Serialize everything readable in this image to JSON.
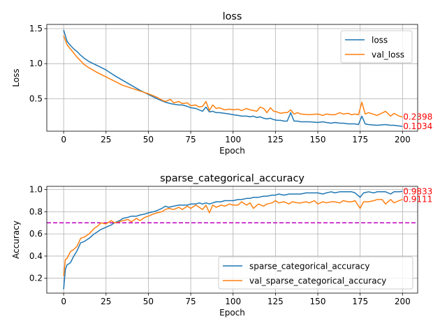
{
  "colors": {
    "series1": "#1f77b4",
    "series2": "#ff7f0e",
    "annotation": "#ff0000",
    "threshold": "#bf00bf",
    "grid": "#b0b0b0"
  },
  "chart_data": [
    {
      "type": "line",
      "title": "loss",
      "xlabel": "Epoch",
      "ylabel": "Loss",
      "xlim": [
        -9.95,
        208.95
      ],
      "ylim": [
        0.035,
        1.56
      ],
      "xticks": [
        0,
        25,
        50,
        75,
        100,
        125,
        150,
        175,
        200
      ],
      "yticks": [
        0.5,
        1.0,
        1.5
      ],
      "ytick_labels": [
        "0.5",
        "1.0",
        "1.5"
      ],
      "grid": true,
      "legend": "top-right",
      "series": [
        {
          "name": "loss",
          "color": "#1f77b4",
          "x": [
            0,
            2,
            4,
            6,
            8,
            10,
            12,
            15,
            20,
            25,
            30,
            35,
            40,
            45,
            50,
            55,
            58,
            60,
            63,
            65,
            68,
            70,
            73,
            75,
            78,
            80,
            82,
            84,
            86,
            88,
            90,
            92,
            95,
            98,
            100,
            103,
            105,
            108,
            110,
            112,
            114,
            116,
            118,
            120,
            122,
            124,
            126,
            128,
            130,
            132,
            134,
            136,
            138,
            140,
            145,
            150,
            153,
            155,
            158,
            160,
            163,
            165,
            168,
            170,
            172,
            174,
            176,
            178,
            180,
            185,
            190,
            193,
            195,
            198,
            200
          ],
          "values": [
            1.48,
            1.32,
            1.26,
            1.21,
            1.17,
            1.12,
            1.08,
            1.03,
            0.97,
            0.91,
            0.83,
            0.76,
            0.69,
            0.62,
            0.56,
            0.5,
            0.47,
            0.45,
            0.43,
            0.42,
            0.41,
            0.41,
            0.39,
            0.37,
            0.36,
            0.34,
            0.32,
            0.38,
            0.31,
            0.32,
            0.3,
            0.3,
            0.29,
            0.28,
            0.27,
            0.26,
            0.25,
            0.25,
            0.24,
            0.25,
            0.23,
            0.24,
            0.22,
            0.21,
            0.22,
            0.2,
            0.19,
            0.19,
            0.18,
            0.18,
            0.3,
            0.18,
            0.18,
            0.17,
            0.17,
            0.16,
            0.17,
            0.16,
            0.15,
            0.16,
            0.15,
            0.15,
            0.14,
            0.14,
            0.14,
            0.13,
            0.25,
            0.14,
            0.13,
            0.12,
            0.13,
            0.12,
            0.12,
            0.11,
            0.1034
          ]
        },
        {
          "name": "val_loss",
          "color": "#ff7f0e",
          "x": [
            0,
            2,
            4,
            6,
            8,
            10,
            12,
            15,
            20,
            25,
            30,
            35,
            40,
            45,
            50,
            55,
            58,
            60,
            63,
            65,
            68,
            70,
            73,
            75,
            78,
            80,
            82,
            84,
            86,
            88,
            90,
            92,
            95,
            98,
            100,
            103,
            105,
            108,
            110,
            112,
            114,
            116,
            118,
            120,
            122,
            124,
            126,
            128,
            130,
            132,
            134,
            136,
            138,
            140,
            145,
            150,
            153,
            155,
            158,
            160,
            163,
            165,
            168,
            170,
            172,
            174,
            176,
            178,
            180,
            185,
            190,
            193,
            195,
            198,
            200
          ],
          "values": [
            1.4,
            1.27,
            1.21,
            1.15,
            1.09,
            1.04,
            0.99,
            0.94,
            0.87,
            0.81,
            0.75,
            0.69,
            0.65,
            0.61,
            0.57,
            0.52,
            0.48,
            0.46,
            0.49,
            0.44,
            0.46,
            0.43,
            0.44,
            0.4,
            0.41,
            0.38,
            0.39,
            0.46,
            0.33,
            0.41,
            0.36,
            0.37,
            0.34,
            0.35,
            0.34,
            0.35,
            0.33,
            0.36,
            0.34,
            0.33,
            0.32,
            0.38,
            0.36,
            0.3,
            0.37,
            0.32,
            0.31,
            0.29,
            0.3,
            0.3,
            0.34,
            0.28,
            0.3,
            0.28,
            0.27,
            0.28,
            0.26,
            0.28,
            0.27,
            0.27,
            0.3,
            0.28,
            0.29,
            0.27,
            0.28,
            0.27,
            0.45,
            0.28,
            0.3,
            0.26,
            0.32,
            0.25,
            0.29,
            0.25,
            0.2398
          ]
        }
      ],
      "annotations": [
        {
          "text": "0.2398",
          "x": 200,
          "y": 0.2398
        },
        {
          "text": "0.1034",
          "x": 200,
          "y": 0.1034
        }
      ]
    },
    {
      "type": "line",
      "title": "sparse_categorical_accuracy",
      "xlabel": "Epoch",
      "ylabel": "Accuracy",
      "xlim": [
        -9.95,
        208.95
      ],
      "ylim": [
        0.066,
        1.029
      ],
      "xticks": [
        0,
        25,
        50,
        75,
        100,
        125,
        150,
        175,
        200
      ],
      "yticks": [
        0.2,
        0.4,
        0.6,
        0.8,
        1.0
      ],
      "ytick_labels": [
        "0.2",
        "0.4",
        "0.6",
        "0.8",
        "1.0"
      ],
      "grid": true,
      "legend": "bottom-right",
      "threshold": 0.7,
      "series": [
        {
          "name": "sparse_categorical_accuracy",
          "color": "#1f77b4",
          "x": [
            0,
            1,
            2,
            4,
            6,
            8,
            10,
            12,
            15,
            18,
            20,
            22,
            25,
            28,
            30,
            33,
            35,
            38,
            40,
            43,
            45,
            48,
            50,
            53,
            55,
            58,
            60,
            62,
            65,
            68,
            70,
            73,
            75,
            78,
            80,
            82,
            84,
            86,
            88,
            90,
            93,
            95,
            98,
            100,
            103,
            105,
            108,
            110,
            112,
            115,
            118,
            120,
            123,
            125,
            127,
            130,
            133,
            135,
            138,
            140,
            143,
            145,
            148,
            150,
            153,
            155,
            158,
            160,
            163,
            165,
            168,
            170,
            172,
            175,
            177,
            180,
            183,
            185,
            188,
            190,
            193,
            195,
            198,
            200
          ],
          "values": [
            0.1,
            0.28,
            0.32,
            0.34,
            0.4,
            0.45,
            0.52,
            0.53,
            0.56,
            0.6,
            0.62,
            0.64,
            0.66,
            0.68,
            0.7,
            0.72,
            0.74,
            0.75,
            0.76,
            0.76,
            0.77,
            0.78,
            0.79,
            0.8,
            0.81,
            0.83,
            0.85,
            0.84,
            0.85,
            0.86,
            0.86,
            0.86,
            0.87,
            0.87,
            0.88,
            0.87,
            0.88,
            0.87,
            0.88,
            0.89,
            0.89,
            0.9,
            0.9,
            0.9,
            0.91,
            0.91,
            0.92,
            0.92,
            0.93,
            0.93,
            0.94,
            0.94,
            0.95,
            0.95,
            0.96,
            0.95,
            0.96,
            0.96,
            0.96,
            0.96,
            0.97,
            0.97,
            0.97,
            0.97,
            0.96,
            0.97,
            0.98,
            0.97,
            0.98,
            0.98,
            0.98,
            0.98,
            0.97,
            0.93,
            0.97,
            0.98,
            0.97,
            0.98,
            0.98,
            0.98,
            0.96,
            0.98,
            0.98,
            0.9833
          ]
        },
        {
          "name": "val_sparse_categorical_accuracy",
          "color": "#ff7f0e",
          "x": [
            0,
            1,
            2,
            4,
            6,
            8,
            10,
            12,
            15,
            18,
            20,
            22,
            25,
            28,
            30,
            33,
            35,
            38,
            40,
            43,
            45,
            48,
            50,
            53,
            55,
            58,
            60,
            62,
            65,
            68,
            70,
            73,
            75,
            78,
            80,
            82,
            84,
            86,
            88,
            90,
            93,
            95,
            98,
            100,
            103,
            105,
            108,
            110,
            112,
            115,
            118,
            120,
            123,
            125,
            127,
            130,
            133,
            135,
            138,
            140,
            143,
            145,
            148,
            150,
            153,
            155,
            158,
            160,
            163,
            165,
            168,
            170,
            172,
            175,
            177,
            180,
            183,
            185,
            188,
            190,
            193,
            195,
            198,
            200
          ],
          "values": [
            0.22,
            0.37,
            0.38,
            0.44,
            0.46,
            0.49,
            0.56,
            0.57,
            0.6,
            0.65,
            0.67,
            0.7,
            0.69,
            0.72,
            0.7,
            0.71,
            0.72,
            0.73,
            0.71,
            0.74,
            0.72,
            0.75,
            0.76,
            0.78,
            0.79,
            0.8,
            0.82,
            0.83,
            0.82,
            0.84,
            0.82,
            0.85,
            0.83,
            0.86,
            0.84,
            0.82,
            0.86,
            0.79,
            0.86,
            0.84,
            0.86,
            0.85,
            0.87,
            0.86,
            0.86,
            0.89,
            0.86,
            0.88,
            0.83,
            0.87,
            0.85,
            0.87,
            0.88,
            0.9,
            0.88,
            0.89,
            0.87,
            0.89,
            0.88,
            0.88,
            0.89,
            0.88,
            0.9,
            0.87,
            0.89,
            0.88,
            0.89,
            0.89,
            0.88,
            0.9,
            0.89,
            0.89,
            0.9,
            0.83,
            0.89,
            0.89,
            0.9,
            0.91,
            0.91,
            0.87,
            0.91,
            0.88,
            0.9,
            0.9111
          ]
        }
      ],
      "annotations": [
        {
          "text": "0.9833",
          "x": 200,
          "y": 0.9833
        },
        {
          "text": "0.9111",
          "x": 200,
          "y": 0.9111
        }
      ]
    }
  ]
}
